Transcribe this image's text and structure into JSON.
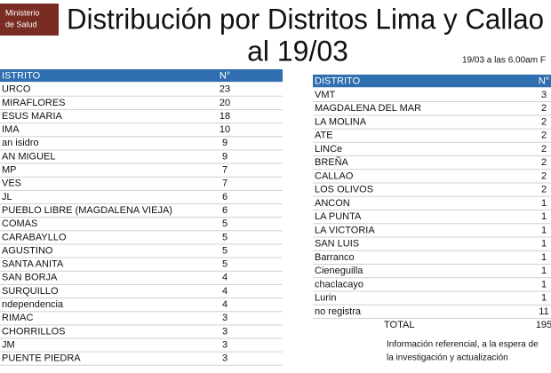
{
  "logo": {
    "lines": [
      "Ministerio",
      "de Salud"
    ]
  },
  "header": {
    "title_line1": "Distribución por Distritos Lima y Callao",
    "title_line2": "al 19/03",
    "timestamp": "19/03 a las 6.00am F"
  },
  "left_table": {
    "columns": [
      "ISTRITO",
      "N°"
    ],
    "rows": [
      [
        "URCO",
        23
      ],
      [
        "MIRAFLORES",
        20
      ],
      [
        "ESUS MARIA",
        18
      ],
      [
        "IMA",
        10
      ],
      [
        "an isidro",
        9
      ],
      [
        "AN MIGUEL",
        9
      ],
      [
        "MP",
        7
      ],
      [
        "VES",
        7
      ],
      [
        "JL",
        6
      ],
      [
        "PUEBLO LIBRE (MAGDALENA VIEJA)",
        6
      ],
      [
        "COMAS",
        5
      ],
      [
        "CARABAYLLO",
        5
      ],
      [
        "AGUSTINO",
        5
      ],
      [
        "SANTA ANITA",
        5
      ],
      [
        "SAN BORJA",
        4
      ],
      [
        "SURQUILLO",
        4
      ],
      [
        "ndependencia",
        4
      ],
      [
        "RIMAC",
        3
      ],
      [
        "CHORRILLOS",
        3
      ],
      [
        "JM",
        3
      ],
      [
        "PUENTE PIEDRA",
        3
      ]
    ]
  },
  "right_table": {
    "columns": [
      "DISTRITO",
      "N°"
    ],
    "rows": [
      [
        "VMT",
        3
      ],
      [
        "MAGDALENA DEL MAR",
        2
      ],
      [
        "LA MOLINA",
        2
      ],
      [
        "ATE",
        2
      ],
      [
        "LINCe",
        2
      ],
      [
        "BREÑA",
        2
      ],
      [
        "CALLAO",
        2
      ],
      [
        "LOS OLIVOS",
        2
      ],
      [
        "ANCON",
        1
      ],
      [
        "LA PUNTA",
        1
      ],
      [
        "LA VICTORIA",
        1
      ],
      [
        "SAN LUIS",
        1
      ],
      [
        "Barranco",
        1
      ],
      [
        "Cieneguilla",
        1
      ],
      [
        "chaclacayo",
        1
      ],
      [
        "Lurin",
        1
      ],
      [
        "no registra",
        11
      ]
    ],
    "total": [
      "TOTAL",
      195
    ]
  },
  "note": [
    "Información referencial, a la espera de",
    "la investigación y actualización"
  ]
}
